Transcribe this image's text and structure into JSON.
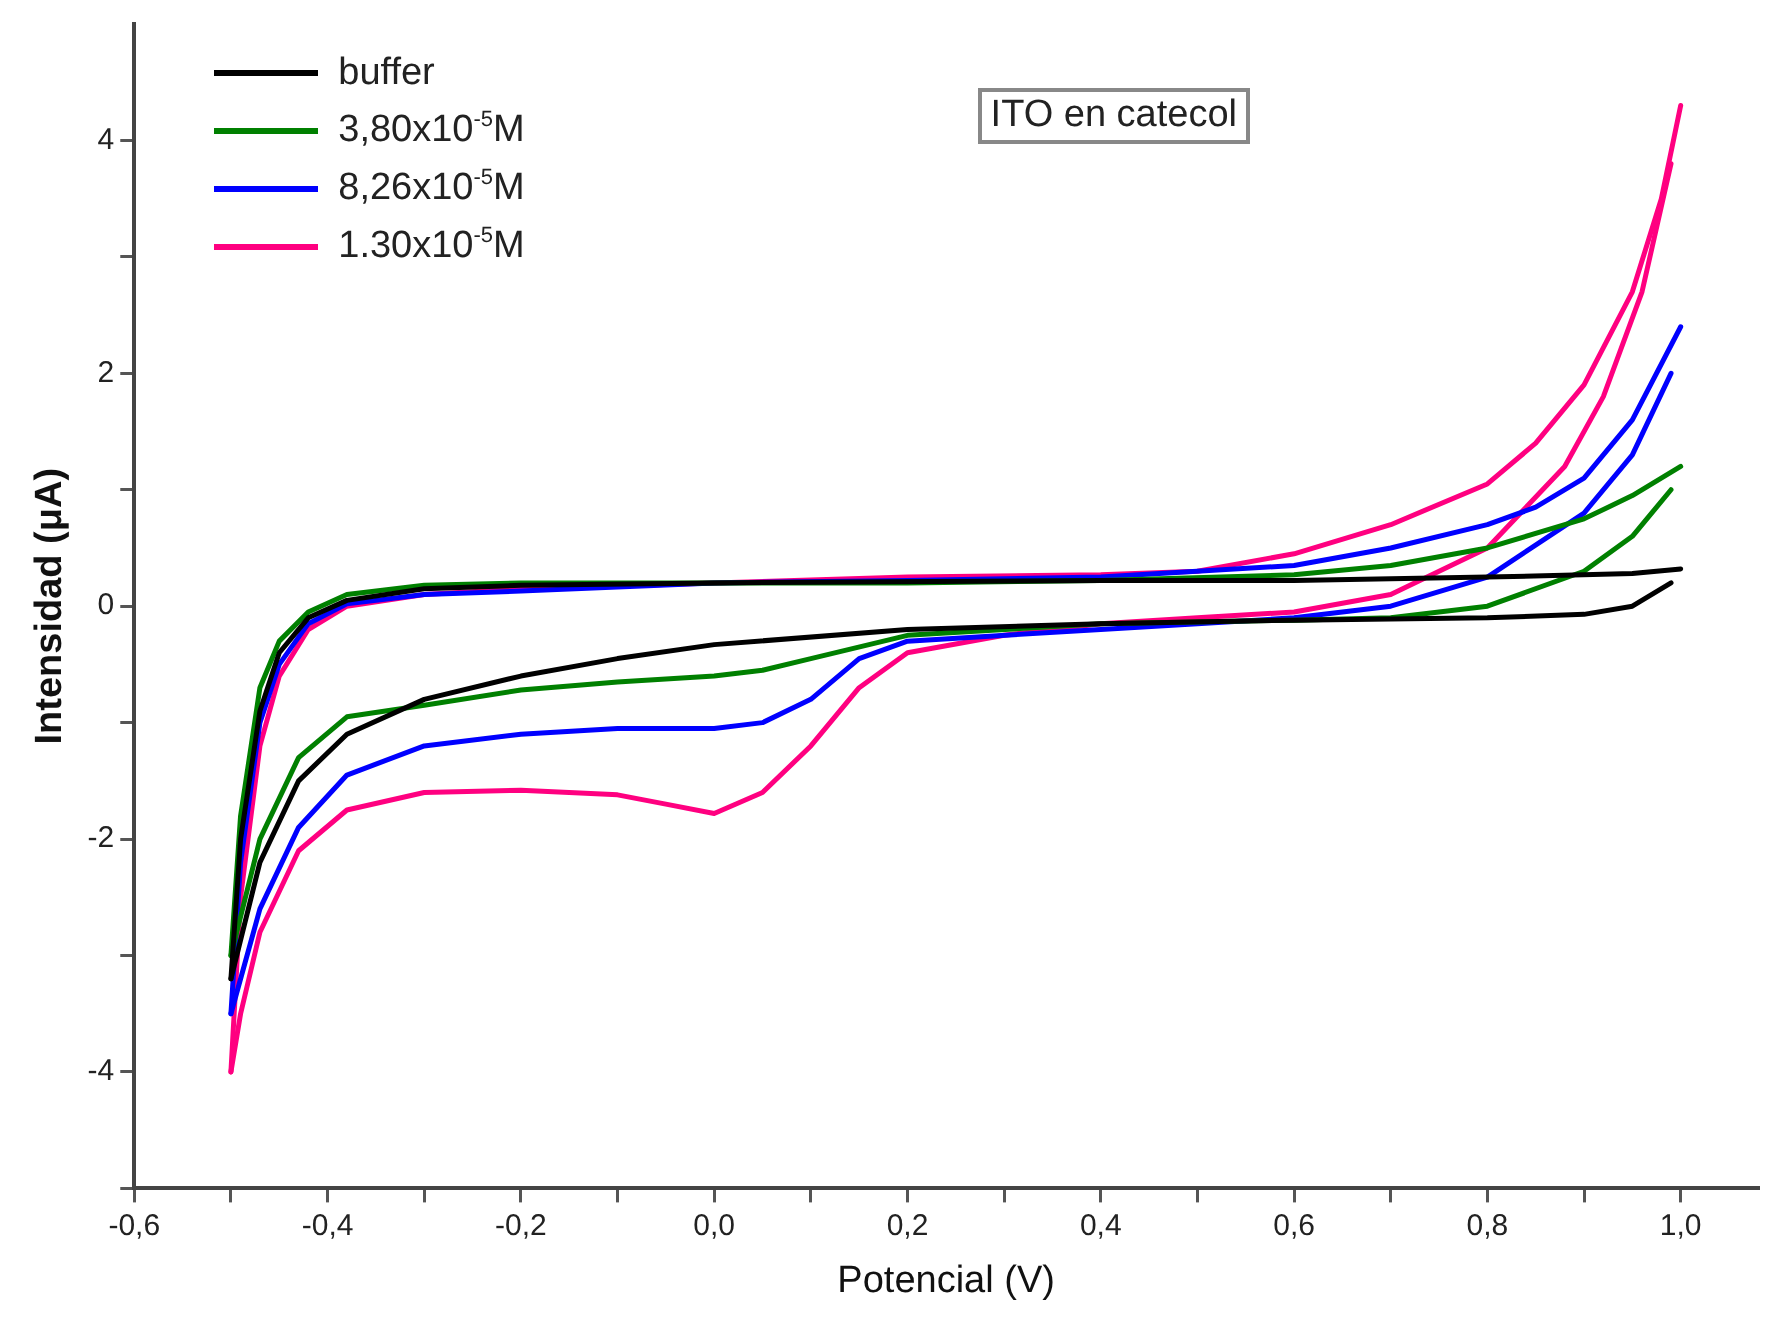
{
  "chart_data": {
    "type": "line",
    "xlabel": "Potencial (V)",
    "ylabel": "Intensidad (μA)",
    "annotations": [
      "ITO en catecol"
    ],
    "xlim": [
      -0.6,
      1.08
    ],
    "ylim": [
      -5,
      5
    ],
    "xticks": [
      {
        "value": -0.6,
        "label": "-0,6"
      },
      {
        "value": -0.5,
        "label": null
      },
      {
        "value": -0.4,
        "label": "-0,4"
      },
      {
        "value": -0.3,
        "label": null
      },
      {
        "value": -0.2,
        "label": "-0,2"
      },
      {
        "value": -0.1,
        "label": null
      },
      {
        "value": 0,
        "label": "0,0"
      },
      {
        "value": 0.1,
        "label": null
      },
      {
        "value": 0.2,
        "label": "0,2"
      },
      {
        "value": 0.3,
        "label": null
      },
      {
        "value": 0.4,
        "label": "0,4"
      },
      {
        "value": 0.5,
        "label": null
      },
      {
        "value": 0.6,
        "label": "0,6"
      },
      {
        "value": 0.7,
        "label": null
      },
      {
        "value": 0.8,
        "label": "0,8"
      },
      {
        "value": 0.9,
        "label": null
      },
      {
        "value": 1.0,
        "label": "1,0"
      }
    ],
    "yticks": [
      {
        "value": -5,
        "label": null
      },
      -4,
      {
        "value": -3,
        "label": null
      },
      -2,
      {
        "value": -1,
        "label": null
      },
      0,
      {
        "value": 1,
        "label": null
      },
      2,
      {
        "value": 3,
        "label": null
      },
      4
    ],
    "grid": false,
    "legend": "top left",
    "marker": "none",
    "line_style": "solid",
    "series": [
      {
        "name": "buffer",
        "color": "#000000",
        "x": [
          -0.5,
          -0.49,
          -0.47,
          -0.45,
          -0.42,
          -0.38,
          -0.3,
          -0.2,
          0.0,
          0.4,
          0.6,
          0.8,
          0.95,
          1.0
        ],
        "values": [
          -3.2,
          -2.0,
          -0.9,
          -0.4,
          -0.1,
          0.05,
          0.15,
          0.18,
          0.2,
          0.22,
          0.22,
          0.25,
          0.28,
          0.32
        ]
      },
      {
        "color": "#000000",
        "x": [
          -0.5,
          -0.47,
          -0.43,
          -0.38,
          -0.3,
          -0.2,
          -0.1,
          0.0,
          0.2,
          0.4,
          0.6,
          0.8,
          0.9,
          0.95,
          0.99
        ],
        "values": [
          -3.2,
          -2.2,
          -1.5,
          -1.1,
          -0.8,
          -0.6,
          -0.45,
          -0.33,
          -0.2,
          -0.15,
          -0.12,
          -0.1,
          -0.07,
          0.0,
          0.2
        ]
      },
      {
        "name": "3,80x10$^{-5}$M",
        "color": "#008000",
        "x": [
          -0.5,
          -0.49,
          -0.47,
          -0.45,
          -0.42,
          -0.38,
          -0.3,
          -0.2,
          0.0,
          0.2,
          0.4,
          0.6,
          0.7,
          0.8,
          0.9,
          0.95,
          1.0
        ],
        "values": [
          -3.0,
          -1.8,
          -0.7,
          -0.3,
          -0.05,
          0.1,
          0.18,
          0.2,
          0.2,
          0.2,
          0.22,
          0.27,
          0.35,
          0.5,
          0.75,
          0.95,
          1.2
        ]
      },
      {
        "color": "#008000",
        "x": [
          -0.5,
          -0.47,
          -0.43,
          -0.38,
          -0.3,
          -0.2,
          -0.1,
          0.0,
          0.05,
          0.1,
          0.2,
          0.4,
          0.6,
          0.7,
          0.8,
          0.9,
          0.95,
          0.99
        ],
        "values": [
          -3.0,
          -2.0,
          -1.3,
          -0.95,
          -0.85,
          -0.72,
          -0.65,
          -0.6,
          -0.55,
          -0.45,
          -0.25,
          -0.15,
          -0.12,
          -0.1,
          0.0,
          0.3,
          0.6,
          1.0
        ]
      },
      {
        "name": "8,26x10$^{-5}$M",
        "color": "#0000ff",
        "x": [
          -0.5,
          -0.49,
          -0.47,
          -0.45,
          -0.42,
          -0.38,
          -0.3,
          -0.2,
          0.0,
          0.2,
          0.4,
          0.6,
          0.7,
          0.8,
          0.85,
          0.9,
          0.95,
          1.0
        ],
        "values": [
          -3.5,
          -2.2,
          -1.0,
          -0.5,
          -0.15,
          0.02,
          0.1,
          0.13,
          0.2,
          0.22,
          0.25,
          0.35,
          0.5,
          0.7,
          0.85,
          1.1,
          1.6,
          2.4
        ]
      },
      {
        "color": "#0000ff",
        "x": [
          -0.5,
          -0.47,
          -0.43,
          -0.38,
          -0.3,
          -0.2,
          -0.1,
          0.0,
          0.05,
          0.1,
          0.15,
          0.2,
          0.4,
          0.5,
          0.6,
          0.7,
          0.8,
          0.9,
          0.95,
          0.99
        ],
        "values": [
          -3.5,
          -2.6,
          -1.9,
          -1.45,
          -1.2,
          -1.1,
          -1.05,
          -1.05,
          -1.0,
          -0.8,
          -0.45,
          -0.3,
          -0.2,
          -0.15,
          -0.1,
          0.0,
          0.25,
          0.8,
          1.3,
          2.0
        ]
      },
      {
        "name": "1.30x10$^{-5}$M",
        "color": "#ff0080",
        "x": [
          -0.5,
          -0.49,
          -0.47,
          -0.45,
          -0.42,
          -0.38,
          -0.3,
          -0.2,
          0.0,
          0.2,
          0.4,
          0.5,
          0.6,
          0.7,
          0.8,
          0.85,
          0.9,
          0.95,
          0.98,
          1.0
        ],
        "values": [
          -4.0,
          -2.5,
          -1.2,
          -0.6,
          -0.2,
          0.0,
          0.1,
          0.15,
          0.2,
          0.25,
          0.27,
          0.3,
          0.45,
          0.7,
          1.05,
          1.4,
          1.9,
          2.7,
          3.5,
          4.3
        ]
      },
      {
        "color": "#ff0080",
        "x": [
          -0.5,
          -0.49,
          -0.47,
          -0.43,
          -0.38,
          -0.3,
          -0.2,
          -0.1,
          -0.05,
          0.0,
          0.05,
          0.1,
          0.15,
          0.2,
          0.3,
          0.4,
          0.5,
          0.6,
          0.7,
          0.8,
          0.88,
          0.92,
          0.96,
          0.99
        ],
        "values": [
          -4.0,
          -3.5,
          -2.8,
          -2.1,
          -1.75,
          -1.6,
          -1.58,
          -1.62,
          -1.7,
          -1.78,
          -1.6,
          -1.2,
          -0.7,
          -0.4,
          -0.25,
          -0.15,
          -0.1,
          -0.05,
          0.1,
          0.5,
          1.2,
          1.8,
          2.7,
          3.8
        ]
      }
    ]
  }
}
